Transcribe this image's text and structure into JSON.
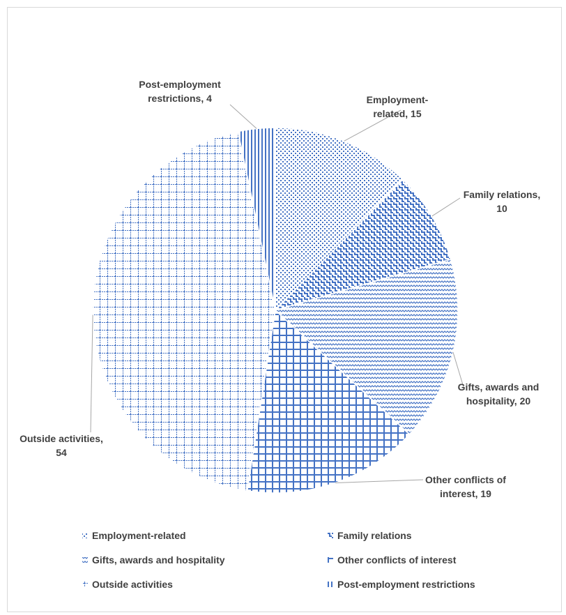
{
  "chart_data": {
    "type": "pie",
    "title": "",
    "slices": [
      {
        "name": "Employment-related",
        "value": 15,
        "label_lines": [
          "Employment-",
          "related, 15"
        ],
        "pattern": "pat-dots"
      },
      {
        "name": "Family relations",
        "value": 10,
        "label_lines": [
          "Family relations,",
          "10"
        ],
        "pattern": "pat-lattice"
      },
      {
        "name": "Gifts, awards and hospitality",
        "value": 20,
        "label_lines": [
          "Gifts, awards and",
          "hospitality, 20"
        ],
        "pattern": "pat-wave"
      },
      {
        "name": "Other conflicts of interest",
        "value": 19,
        "label_lines": [
          "Other conflicts of",
          "interest, 19"
        ],
        "pattern": "pat-grid-dark"
      },
      {
        "name": "Outside activities",
        "value": 54,
        "label_lines": [
          "Outside activities,",
          "54"
        ],
        "pattern": "pat-grid-light"
      },
      {
        "name": "Post-employment restrictions",
        "value": 4,
        "label_lines": [
          "Post-employment",
          "restrictions, 4"
        ],
        "pattern": "pat-vstripes"
      }
    ],
    "legend": {
      "placement": "bottom",
      "entries": [
        "Employment-related",
        "Family relations",
        "Gifts, awards and hospitality",
        "Other conflicts of interest",
        "Outside activities",
        "Post-employment restrictions"
      ]
    },
    "colors": {
      "pattern": "#4472c4",
      "text": "#404040",
      "leader": "#a6a6a6"
    }
  }
}
